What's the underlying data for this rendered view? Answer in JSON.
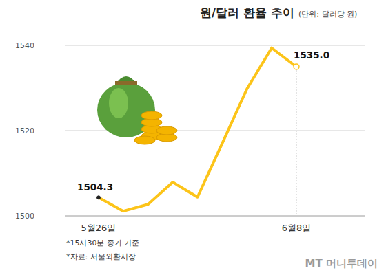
{
  "chart_data": {
    "type": "line",
    "title": "원/달러 환율 추이",
    "subtitle": "(단위: 달러당 원)",
    "categories": [
      "5월26일",
      null,
      null,
      null,
      null,
      null,
      null,
      null,
      "6월8일"
    ],
    "values": [
      1504.3,
      1501.1,
      1502.7,
      1507.9,
      1504.4,
      1517.0,
      1529.8,
      1539.4,
      1535.0
    ],
    "value_labels": [
      "1504.3",
      null,
      null,
      null,
      null,
      null,
      null,
      null,
      "1535.0"
    ],
    "data_labels": true,
    "color": "#fcc419",
    "marker": "circle",
    "ylim": [
      1500,
      1540
    ],
    "yticks": [
      1500,
      1520,
      1540
    ],
    "grid": true,
    "annotations": [
      "*15시30분 종가 기준",
      "*자료: 서울외환시장",
      "MT 머니투데이"
    ]
  }
}
